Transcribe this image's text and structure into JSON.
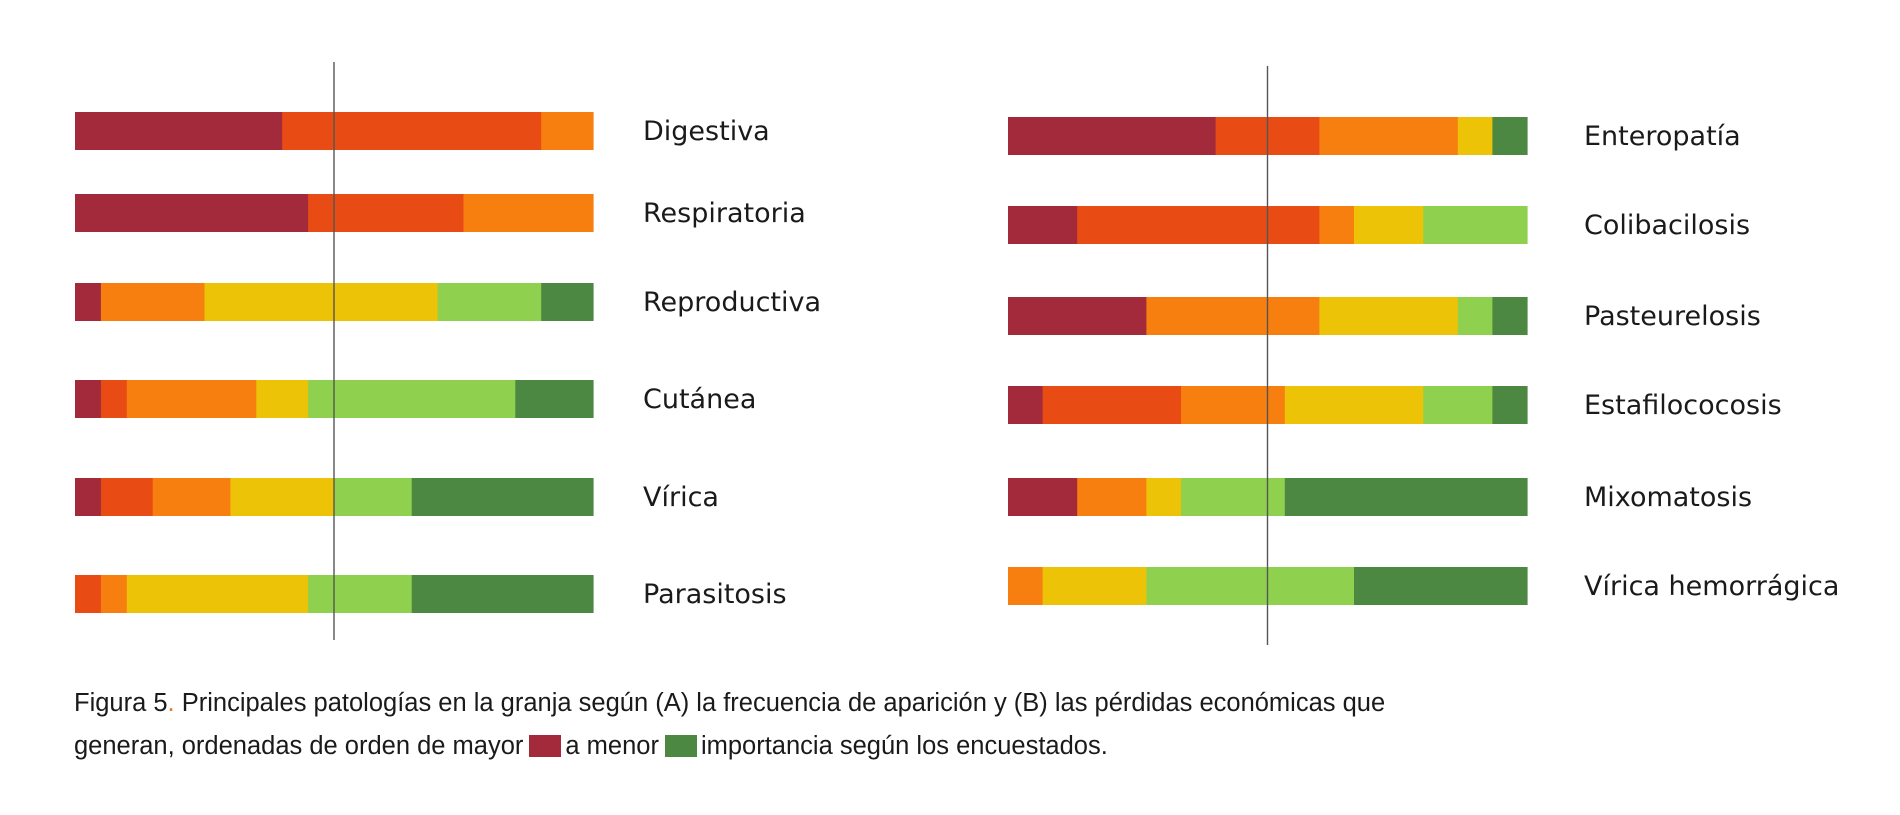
{
  "colors": [
    "#a32a3a",
    "#e84c14",
    "#f77f0f",
    "#ecc306",
    "#90d04f",
    "#4d8842"
  ],
  "chart_data": [
    {
      "type": "bar",
      "stacked": true,
      "orientation": "horizontal",
      "panel": "A",
      "xlim": [
        0,
        6
      ],
      "reference_line": 3,
      "categories": [
        "Digestiva",
        "Respiratoria",
        "Reproductiva",
        "Cutánea",
        "Vírica",
        "Parasitosis"
      ],
      "series": [
        {
          "values": [
            2.4,
            2.7,
            0.3,
            0.3,
            0.3,
            0.0
          ]
        },
        {
          "values": [
            3.0,
            1.8,
            0.0,
            0.3,
            0.6,
            0.3
          ]
        },
        {
          "values": [
            0.6,
            1.5,
            1.2,
            1.5,
            0.9,
            0.3
          ]
        },
        {
          "values": [
            0.0,
            0.0,
            2.7,
            0.6,
            1.2,
            2.1
          ]
        },
        {
          "values": [
            0.0,
            0.0,
            1.2,
            2.4,
            0.9,
            1.2
          ]
        },
        {
          "values": [
            0.0,
            0.0,
            0.6,
            0.9,
            2.1,
            2.1
          ]
        }
      ]
    },
    {
      "type": "bar",
      "stacked": true,
      "orientation": "horizontal",
      "panel": "B",
      "xlim": [
        0,
        6
      ],
      "reference_line": 3,
      "categories": [
        "Enteropatía",
        "Colibacilosis",
        "Pasteurelosis",
        "Estafilococosis",
        "Mixomatosis",
        "Vírica hemorrágica"
      ],
      "series": [
        {
          "values": [
            2.4,
            0.8,
            1.6,
            0.4,
            0.8,
            0.0
          ]
        },
        {
          "values": [
            1.2,
            2.8,
            0.0,
            1.6,
            0.0,
            0.0
          ]
        },
        {
          "values": [
            1.6,
            0.4,
            2.0,
            1.2,
            0.8,
            0.4
          ]
        },
        {
          "values": [
            0.4,
            0.8,
            1.6,
            1.6,
            0.4,
            1.2
          ]
        },
        {
          "values": [
            0.0,
            1.2,
            0.4,
            0.8,
            1.2,
            2.4
          ]
        },
        {
          "values": [
            0.4,
            0.0,
            0.4,
            0.4,
            2.8,
            2.0
          ]
        }
      ]
    }
  ],
  "caption": {
    "line1_a": "Figura 5",
    "line1_dot": ".",
    "line1_b": " Principales patologías en la granja según (A) la frecuencia de aparición y (B) las pérdidas económicas que",
    "line2_a": "generan, ordenadas de orden de mayor",
    "line2_b": "a menor",
    "line2_c": "importancia según los encuestados."
  }
}
